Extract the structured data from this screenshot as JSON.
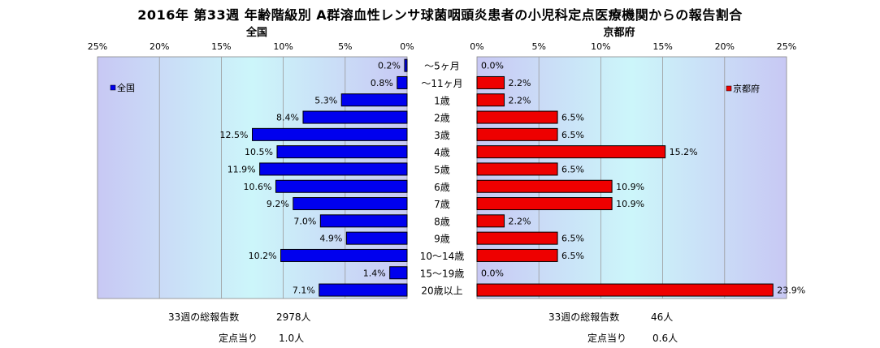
{
  "title": "2016年 第33週 年齢階級別 A群溶血性レンサ球菌咽頭炎患者の小児科定点医療機関からの報告割合",
  "colors": {
    "zenkoku_bar": "#0000ee",
    "kyoto_bar": "#ee0000",
    "plot_bg_edge": "#c8c8f4",
    "plot_bg_center": "#ccf6fa",
    "grid": "#9a9a9a"
  },
  "chart_data": [
    {
      "type": "bar",
      "orientation": "horizontal",
      "direction": "right-to-left",
      "title": "全国",
      "series": [
        {
          "name": "全国",
          "values": [
            0.2,
            0.8,
            5.3,
            8.4,
            12.5,
            10.5,
            11.9,
            10.6,
            9.2,
            7.0,
            4.9,
            10.2,
            1.4,
            7.1
          ]
        }
      ],
      "data_labels": [
        "0.2%",
        "0.8%",
        "5.3%",
        "8.4%",
        "12.5%",
        "10.5%",
        "11.9%",
        "10.6%",
        "9.2%",
        "7.0%",
        "4.9%",
        "10.2%",
        "1.4%",
        "7.1%"
      ],
      "xlim": [
        0,
        25
      ],
      "ticks": [
        25,
        20,
        15,
        10,
        5,
        0
      ],
      "tick_labels": [
        "25%",
        "20%",
        "15%",
        "10%",
        "5%",
        "0%"
      ],
      "grid": true,
      "legend": "top-left"
    },
    {
      "type": "bar",
      "orientation": "horizontal",
      "direction": "left-to-right",
      "title": "京都府",
      "series": [
        {
          "name": "京都府",
          "values": [
            0.0,
            2.2,
            2.2,
            6.5,
            6.5,
            15.2,
            6.5,
            10.9,
            10.9,
            2.2,
            6.5,
            6.5,
            0.0,
            23.9
          ]
        }
      ],
      "data_labels": [
        "0.0%",
        "2.2%",
        "2.2%",
        "6.5%",
        "6.5%",
        "15.2%",
        "6.5%",
        "10.9%",
        "10.9%",
        "2.2%",
        "6.5%",
        "6.5%",
        "0.0%",
        "23.9%"
      ],
      "xlim": [
        0,
        25
      ],
      "ticks": [
        0,
        5,
        10,
        15,
        20,
        25
      ],
      "tick_labels": [
        "0%",
        "5%",
        "10%",
        "15%",
        "20%",
        "25%"
      ],
      "grid": true,
      "legend": "top-right"
    }
  ],
  "categories": [
    "～5ヶ月",
    "～11ヶ月",
    "1歳",
    "2歳",
    "3歳",
    "4歳",
    "5歳",
    "6歳",
    "7歳",
    "8歳",
    "9歳",
    "10～14歳",
    "15～19歳",
    "20歳以上"
  ],
  "stats": {
    "zenkoku": {
      "total_label": "33週の総報告数",
      "total_value": "2978人",
      "per_label": "定点当り",
      "per_value": "1.0人"
    },
    "kyoto": {
      "total_label": "33週の総報告数",
      "total_value": "46人",
      "per_label": "定点当り",
      "per_value": "0.6人"
    }
  }
}
